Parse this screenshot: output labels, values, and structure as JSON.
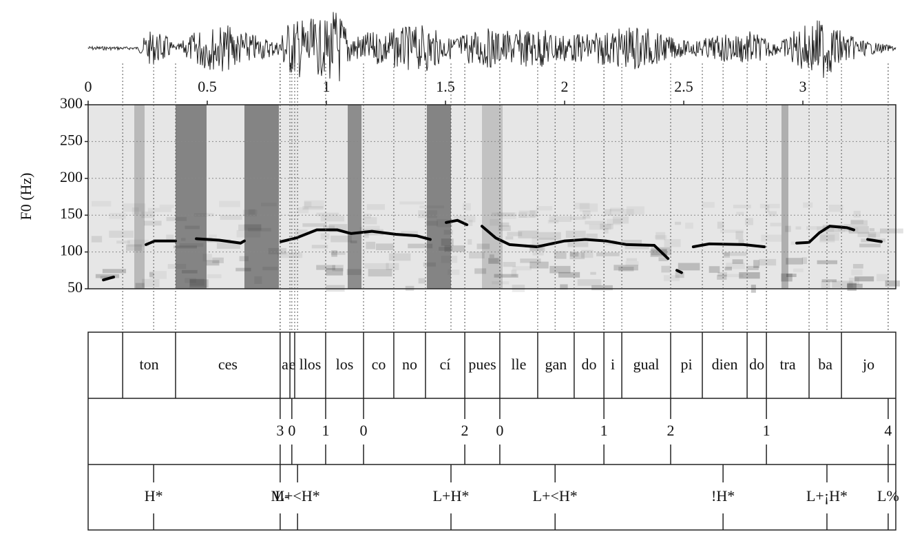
{
  "chart_data": {
    "type": "line",
    "y_label": "F0 (Hz)",
    "xlim": [
      0,
      3.39
    ],
    "xticks": [
      0,
      0.5,
      1,
      1.5,
      2,
      2.5,
      3
    ],
    "ylim": [
      50,
      300
    ],
    "yticks": [
      50,
      100,
      150,
      200,
      250,
      300
    ],
    "grid": true,
    "x": [
      0.064,
      0.107,
      0.17,
      0.243,
      0.28,
      0.367,
      0.41,
      0.454,
      0.55,
      0.64,
      0.656,
      0.73,
      0.809,
      0.873,
      0.96,
      1.046,
      1.104,
      1.191,
      1.292,
      1.379,
      1.436,
      1.47,
      1.503,
      1.55,
      1.59,
      1.62,
      1.653,
      1.711,
      1.769,
      1.884,
      2.0,
      2.087,
      2.173,
      2.26,
      2.376,
      2.434,
      2.45,
      2.471,
      2.491,
      2.51,
      2.54,
      2.607,
      2.751,
      2.838,
      2.9,
      2.974,
      3.026,
      3.069,
      3.113,
      3.185,
      3.214,
      3.24,
      3.272,
      3.329
    ],
    "series": [
      {
        "name": "F0",
        "color": "#000000",
        "values": [
          62,
          66,
          null,
          110,
          115,
          115,
          null,
          118,
          116,
          112,
          115,
          null,
          114,
          119,
          130,
          130,
          125,
          128,
          124,
          122,
          117,
          null,
          140,
          143,
          137,
          null,
          135,
          119,
          110,
          107,
          115,
          117,
          115,
          110,
          109,
          91,
          null,
          75,
          72,
          null,
          107,
          111,
          110,
          107,
          null,
          112,
          113,
          126,
          135,
          133,
          130,
          null,
          117,
          114
        ]
      }
    ],
    "syllables": [
      {
        "start": 0.145,
        "end": 0.367,
        "label": "ton"
      },
      {
        "start": 0.367,
        "end": 0.806,
        "label": "ces"
      },
      {
        "start": 0.806,
        "end": 0.847,
        "label": "a"
      },
      {
        "start": 0.847,
        "end": 0.867,
        "label": "e"
      },
      {
        "start": 0.867,
        "end": 0.997,
        "label": "llos"
      },
      {
        "start": 0.997,
        "end": 1.156,
        "label": "los"
      },
      {
        "start": 1.156,
        "end": 1.283,
        "label": "co"
      },
      {
        "start": 1.283,
        "end": 1.416,
        "label": "no"
      },
      {
        "start": 1.416,
        "end": 1.581,
        "label": "cí"
      },
      {
        "start": 1.581,
        "end": 1.728,
        "label": "pues"
      },
      {
        "start": 1.728,
        "end": 1.887,
        "label": "lle"
      },
      {
        "start": 1.887,
        "end": 2.04,
        "label": "gan"
      },
      {
        "start": 2.04,
        "end": 2.165,
        "label": "do"
      },
      {
        "start": 2.165,
        "end": 2.24,
        "label": "i"
      },
      {
        "start": 2.24,
        "end": 2.445,
        "label": "gual"
      },
      {
        "start": 2.445,
        "end": 2.578,
        "label": "pi"
      },
      {
        "start": 2.578,
        "end": 2.766,
        "label": "dien"
      },
      {
        "start": 2.766,
        "end": 2.847,
        "label": "do"
      },
      {
        "start": 2.847,
        "end": 3.026,
        "label": "tra"
      },
      {
        "start": 3.026,
        "end": 3.162,
        "label": "ba"
      },
      {
        "start": 3.162,
        "end": 3.39,
        "label": "jo"
      }
    ],
    "breaks": [
      {
        "time": 0.806,
        "label": "3"
      },
      {
        "time": 0.855,
        "label": "0"
      },
      {
        "time": 0.997,
        "label": "1"
      },
      {
        "time": 1.156,
        "label": "0"
      },
      {
        "time": 1.581,
        "label": "2"
      },
      {
        "time": 1.728,
        "label": "0"
      },
      {
        "time": 2.165,
        "label": "1"
      },
      {
        "time": 2.445,
        "label": "2"
      },
      {
        "time": 2.847,
        "label": "1"
      },
      {
        "time": 3.358,
        "label": "4"
      }
    ],
    "tones": [
      {
        "time": 0.275,
        "label": "H*"
      },
      {
        "time": 0.806,
        "label": "M-"
      },
      {
        "time": 0.879,
        "label": "L+<H*"
      },
      {
        "time": 1.523,
        "label": "L+H*"
      },
      {
        "time": 1.96,
        "label": "L+<H*"
      },
      {
        "time": 2.665,
        "label": "!H*"
      },
      {
        "time": 3.101,
        "label": "L+¡H*"
      },
      {
        "time": 3.358,
        "label": "L%"
      }
    ]
  }
}
